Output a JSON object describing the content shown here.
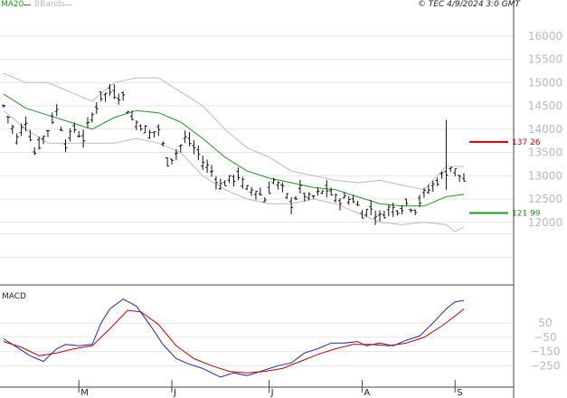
{
  "header": {
    "ma_label": "MA20",
    "bbands_label": "BBands",
    "info": "© TEC 4/9/2024 3:0 GMT"
  },
  "macd_panel": {
    "label": "MACD"
  },
  "colors": {
    "price_bars": "#111111",
    "ma20": "#1a9a1a",
    "bbands": "#bbbbbb",
    "resistance": "#cc0000",
    "support": "#1a9a1a",
    "macd_line": "#2222cc",
    "signal_line": "#cc0000",
    "grid": "#e4e4e4",
    "axis_text": "#b8b8b8"
  },
  "chart_data": [
    {
      "type": "ohlc",
      "title": "",
      "ylim": [
        11200,
        16500
      ],
      "y_ticks": [
        12000,
        12500,
        13000,
        13500,
        14000,
        14500,
        15000,
        15500,
        16000
      ],
      "y_tick_labels": [
        "12000",
        "12500",
        "13000",
        "13500",
        "14000",
        "14500",
        "15000",
        "15500",
        "16000"
      ],
      "x_tick_labels": [
        "M",
        "J",
        "J",
        "A",
        "S"
      ],
      "x_tick_positions": [
        17,
        38,
        60,
        81,
        102
      ],
      "n_periods": 105,
      "series": [
        {
          "name": "Price",
          "close_points": [
            [
              0,
              14500
            ],
            [
              3,
              13800
            ],
            [
              5,
              14200
            ],
            [
              7,
              13500
            ],
            [
              10,
              14000
            ],
            [
              12,
              14400
            ],
            [
              14,
              13700
            ],
            [
              16,
              14000
            ],
            [
              18,
              13800
            ],
            [
              20,
              14300
            ],
            [
              22,
              14700
            ],
            [
              24,
              14800
            ],
            [
              27,
              14700
            ],
            [
              29,
              14200
            ],
            [
              31,
              14100
            ],
            [
              33,
              13900
            ],
            [
              35,
              14000
            ],
            [
              37,
              13300
            ],
            [
              39,
              13500
            ],
            [
              41,
              13800
            ],
            [
              43,
              13600
            ],
            [
              45,
              13300
            ],
            [
              47,
              13100
            ],
            [
              49,
              12800
            ],
            [
              51,
              12900
            ],
            [
              53,
              13000
            ],
            [
              55,
              12700
            ],
            [
              57,
              12700
            ],
            [
              59,
              12500
            ],
            [
              61,
              12900
            ],
            [
              63,
              12700
            ],
            [
              65,
              12400
            ],
            [
              67,
              12700
            ],
            [
              69,
              12500
            ],
            [
              71,
              12600
            ],
            [
              73,
              12700
            ],
            [
              75,
              12500
            ],
            [
              77,
              12500
            ],
            [
              79,
              12500
            ],
            [
              81,
              12200
            ],
            [
              83,
              12300
            ],
            [
              85,
              12100
            ],
            [
              87,
              12300
            ],
            [
              89,
              12300
            ],
            [
              91,
              12400
            ],
            [
              93,
              12300
            ],
            [
              95,
              12600
            ],
            [
              97,
              12800
            ],
            [
              99,
              13000
            ],
            [
              100,
              13100
            ],
            [
              101,
              13200
            ],
            [
              103,
              13000
            ],
            [
              104,
              12900
            ]
          ],
          "noise_amplitude": 110,
          "range_amplitude": 150,
          "spike": {
            "index": 100,
            "high": 14200,
            "low": 12700
          }
        },
        {
          "name": "MA20",
          "points": [
            [
              0,
              14750
            ],
            [
              5,
              14450
            ],
            [
              10,
              14300
            ],
            [
              15,
              14150
            ],
            [
              20,
              14000
            ],
            [
              25,
              14250
            ],
            [
              30,
              14400
            ],
            [
              35,
              14350
            ],
            [
              40,
              14150
            ],
            [
              45,
              13800
            ],
            [
              50,
              13400
            ],
            [
              55,
              13100
            ],
            [
              60,
              12950
            ],
            [
              65,
              12850
            ],
            [
              70,
              12750
            ],
            [
              75,
              12700
            ],
            [
              80,
              12550
            ],
            [
              85,
              12400
            ],
            [
              90,
              12350
            ],
            [
              95,
              12350
            ],
            [
              100,
              12550
            ],
            [
              104,
              12600
            ]
          ]
        },
        {
          "name": "BBands",
          "upper_points": [
            [
              0,
              15200
            ],
            [
              5,
              15000
            ],
            [
              10,
              15000
            ],
            [
              15,
              14800
            ],
            [
              20,
              14600
            ],
            [
              25,
              15000
            ],
            [
              30,
              15100
            ],
            [
              35,
              15100
            ],
            [
              40,
              14800
            ],
            [
              45,
              14500
            ],
            [
              50,
              14000
            ],
            [
              55,
              13600
            ],
            [
              60,
              13400
            ],
            [
              65,
              13100
            ],
            [
              70,
              13000
            ],
            [
              75,
              12900
            ],
            [
              80,
              12850
            ],
            [
              85,
              12900
            ],
            [
              90,
              12800
            ],
            [
              95,
              12700
            ],
            [
              100,
              13200
            ],
            [
              104,
              13200
            ]
          ],
          "lower_points": [
            [
              0,
              14400
            ],
            [
              5,
              14000
            ],
            [
              10,
              13700
            ],
            [
              15,
              13700
            ],
            [
              20,
              13700
            ],
            [
              25,
              13700
            ],
            [
              30,
              13800
            ],
            [
              35,
              13700
            ],
            [
              40,
              13500
            ],
            [
              45,
              13000
            ],
            [
              50,
              12700
            ],
            [
              55,
              12500
            ],
            [
              60,
              12400
            ],
            [
              65,
              12400
            ],
            [
              70,
              12500
            ],
            [
              75,
              12400
            ],
            [
              80,
              12200
            ],
            [
              85,
              12000
            ],
            [
              90,
              11950
            ],
            [
              95,
              12000
            ],
            [
              100,
              11950
            ],
            [
              102,
              11800
            ],
            [
              104,
              11900
            ]
          ]
        }
      ],
      "levels": [
        {
          "name": "resistance",
          "value": 13726,
          "label": "137 26"
        },
        {
          "name": "support",
          "value": 12199,
          "label": "121 99"
        }
      ]
    },
    {
      "type": "line",
      "title": "MACD",
      "ylim": [
        -350,
        300
      ],
      "y_ticks": [
        50,
        -50,
        -150,
        -250
      ],
      "y_tick_labels": [
        "50",
        "−50",
        "−150",
        "−250"
      ],
      "series": [
        {
          "name": "MACD",
          "points": [
            [
              0,
              -60
            ],
            [
              3,
              -120
            ],
            [
              6,
              -180
            ],
            [
              9,
              -220
            ],
            [
              12,
              -130
            ],
            [
              14,
              -100
            ],
            [
              17,
              -110
            ],
            [
              20,
              -100
            ],
            [
              22,
              50
            ],
            [
              24,
              150
            ],
            [
              27,
              220
            ],
            [
              30,
              170
            ],
            [
              33,
              40
            ],
            [
              36,
              -100
            ],
            [
              39,
              -200
            ],
            [
              42,
              -240
            ],
            [
              45,
              -270
            ],
            [
              49,
              -330
            ],
            [
              52,
              -300
            ],
            [
              55,
              -320
            ],
            [
              58,
              -290
            ],
            [
              62,
              -250
            ],
            [
              65,
              -230
            ],
            [
              68,
              -160
            ],
            [
              71,
              -130
            ],
            [
              74,
              -90
            ],
            [
              77,
              -90
            ],
            [
              80,
              -80
            ],
            [
              82,
              -110
            ],
            [
              85,
              -90
            ],
            [
              88,
              -110
            ],
            [
              91,
              -70
            ],
            [
              94,
              -40
            ],
            [
              97,
              50
            ],
            [
              100,
              150
            ],
            [
              102,
              200
            ],
            [
              104,
              210
            ]
          ]
        },
        {
          "name": "Signal",
          "points": [
            [
              0,
              -80
            ],
            [
              4,
              -120
            ],
            [
              8,
              -180
            ],
            [
              12,
              -160
            ],
            [
              16,
              -130
            ],
            [
              20,
              -110
            ],
            [
              24,
              10
            ],
            [
              28,
              140
            ],
            [
              31,
              130
            ],
            [
              35,
              40
            ],
            [
              39,
              -110
            ],
            [
              43,
              -200
            ],
            [
              47,
              -250
            ],
            [
              51,
              -290
            ],
            [
              55,
              -300
            ],
            [
              59,
              -290
            ],
            [
              63,
              -270
            ],
            [
              67,
              -220
            ],
            [
              71,
              -170
            ],
            [
              75,
              -130
            ],
            [
              79,
              -100
            ],
            [
              83,
              -100
            ],
            [
              87,
              -110
            ],
            [
              91,
              -90
            ],
            [
              95,
              -50
            ],
            [
              99,
              30
            ],
            [
              102,
              100
            ],
            [
              104,
              150
            ]
          ]
        }
      ]
    }
  ]
}
